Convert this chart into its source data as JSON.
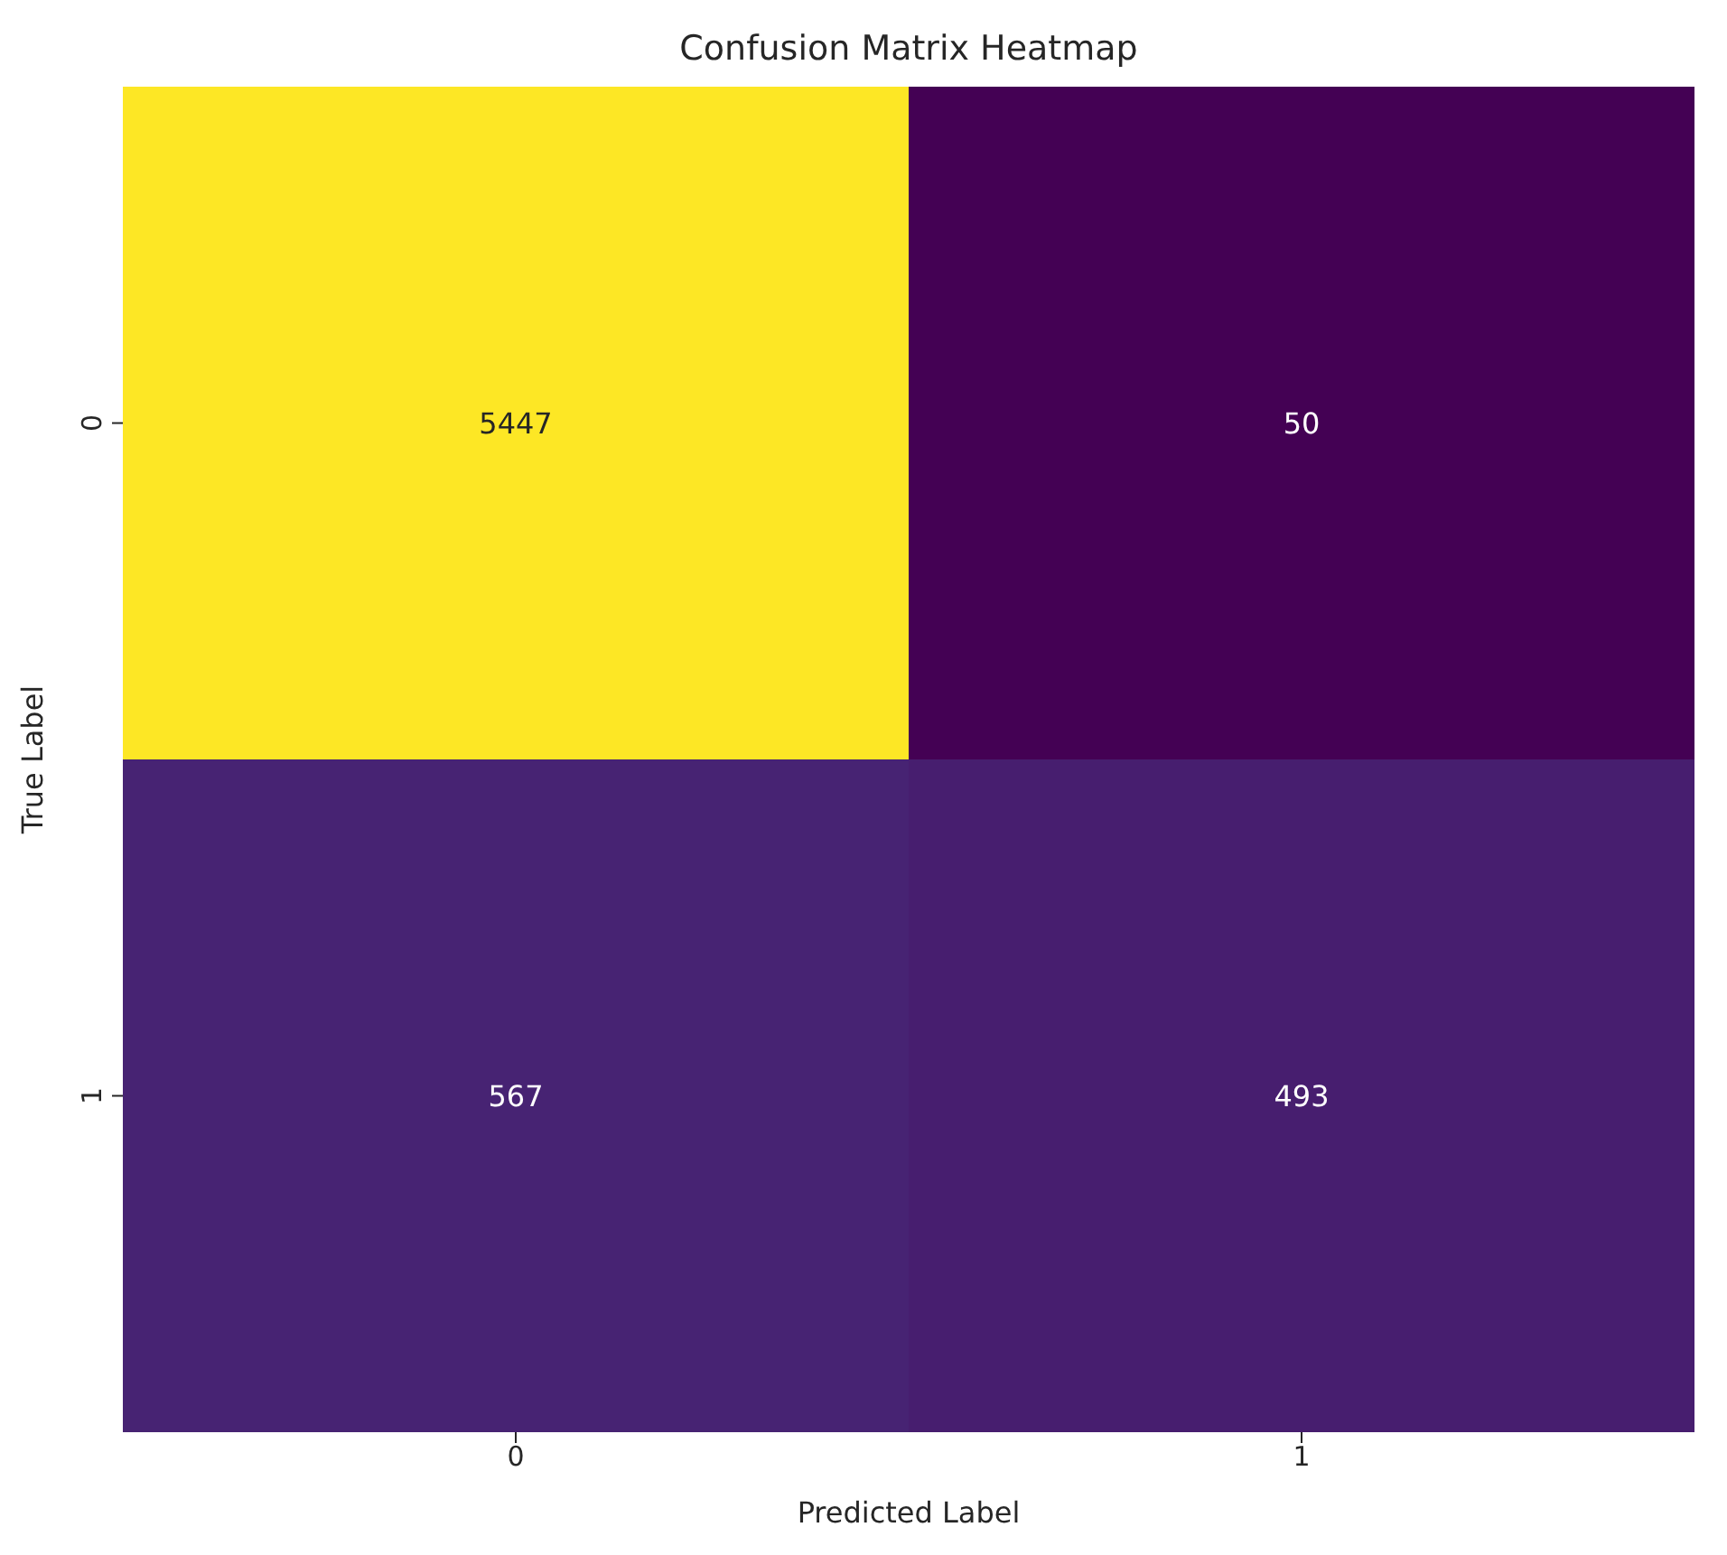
{
  "chart_data": {
    "type": "heatmap",
    "title": "Confusion Matrix Heatmap",
    "xlabel": "Predicted Label",
    "ylabel": "True Label",
    "categories": [
      "0",
      "1"
    ],
    "y_categories": [
      "0",
      "1"
    ],
    "cells": [
      [
        5447,
        50
      ],
      [
        567,
        493
      ]
    ],
    "data_labels": true
  }
}
